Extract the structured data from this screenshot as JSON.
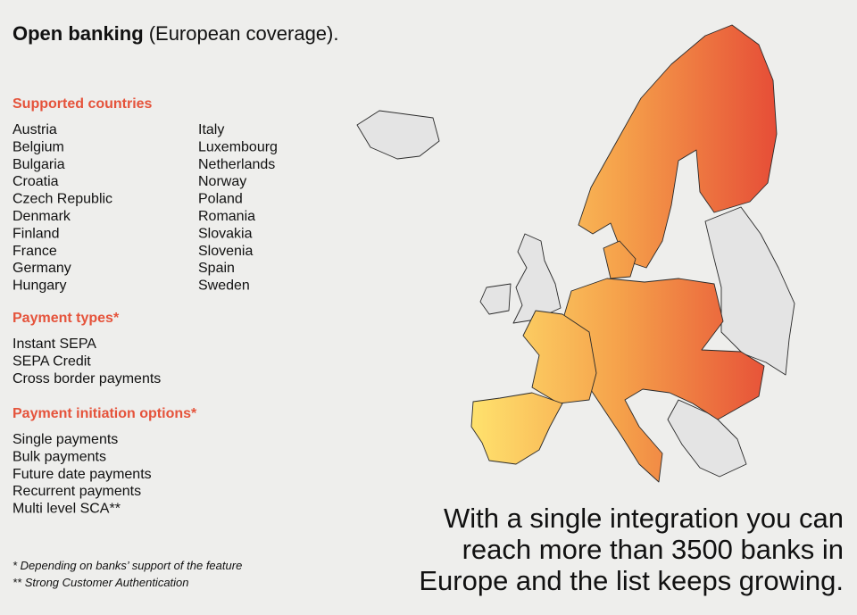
{
  "header": {
    "title_bold": "Open banking",
    "title_rest": "(European coverage)."
  },
  "sections": [
    {
      "heading": "Supported countries",
      "items": [
        "Austria",
        "Belgium",
        "Bulgaria",
        "Croatia",
        "Czech Republic",
        "Denmark",
        "Finland",
        "France",
        "Germany",
        "Hungary",
        "Italy",
        "Luxembourg",
        "Netherlands",
        "Norway",
        "Poland",
        "Romania",
        "Slovakia",
        "Slovenia",
        "Spain",
        "Sweden"
      ]
    },
    {
      "heading": "Payment types*",
      "items": [
        "Instant SEPA",
        "SEPA Credit",
        "Cross border payments"
      ]
    },
    {
      "heading": "Payment initiation options*",
      "items": [
        "Single payments",
        "Bulk payments",
        "Future date payments",
        "Recurrent payments",
        "Multi level SCA**"
      ]
    }
  ],
  "footnotes": [
    "* Depending on banks’ support of the feature",
    "** Strong Customer Authentication"
  ],
  "tagline": [
    "With a single integration you can",
    "reach more than 3500 banks in",
    "Europe and the list keeps growing."
  ]
}
